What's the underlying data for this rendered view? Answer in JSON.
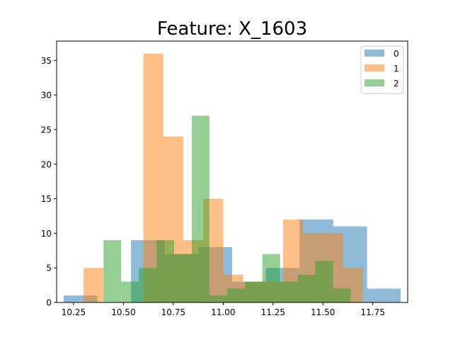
{
  "chart_data": {
    "type": "bar",
    "title": "Feature: X_1603",
    "xlabel": "",
    "ylabel": "",
    "xlim": [
      10.165,
      11.925
    ],
    "ylim": [
      0,
      37.8
    ],
    "x_ticks": [
      "10.25",
      "10.50",
      "10.75",
      "11.00",
      "11.25",
      "11.50",
      "11.75"
    ],
    "x_tick_values": [
      10.25,
      10.5,
      10.75,
      11.0,
      11.25,
      11.5,
      11.75
    ],
    "y_ticks": [
      "0",
      "5",
      "10",
      "15",
      "20",
      "25",
      "30",
      "35"
    ],
    "y_tick_values": [
      0,
      5,
      10,
      15,
      20,
      25,
      30,
      35
    ],
    "grid": false,
    "legend_position": "top-right",
    "histogram": true,
    "series": [
      {
        "name": "0",
        "color": "#1f77b4",
        "bin_edges": [
          10.2,
          10.369,
          10.538,
          10.707,
          10.876,
          11.045,
          11.214,
          11.383,
          11.552,
          11.721,
          11.89
        ],
        "counts": [
          1,
          0,
          9,
          7,
          8,
          3,
          5,
          12,
          11,
          2
        ]
      },
      {
        "name": "1",
        "color": "#ff7f0e",
        "bin_edges": [
          10.3,
          10.4,
          10.5,
          10.6,
          10.7,
          10.8,
          10.9,
          11.0,
          11.1,
          11.2,
          11.3,
          11.4,
          11.5,
          11.6,
          11.7
        ],
        "counts": [
          5,
          0,
          0,
          36,
          24,
          9,
          15,
          4,
          3,
          3,
          12,
          10,
          10,
          5
        ]
      },
      {
        "name": "2",
        "color": "#2ca02c",
        "bin_edges": [
          10.4,
          10.4885,
          10.577,
          10.6655,
          10.754,
          10.8425,
          10.931,
          11.0195,
          11.108,
          11.1965,
          11.285,
          11.3735,
          11.462,
          11.5505,
          11.639,
          11.7275
        ],
        "counts": [
          9,
          3,
          5,
          9,
          7,
          27,
          1,
          2,
          3,
          7,
          3,
          4,
          6,
          2,
          0
        ]
      }
    ]
  }
}
